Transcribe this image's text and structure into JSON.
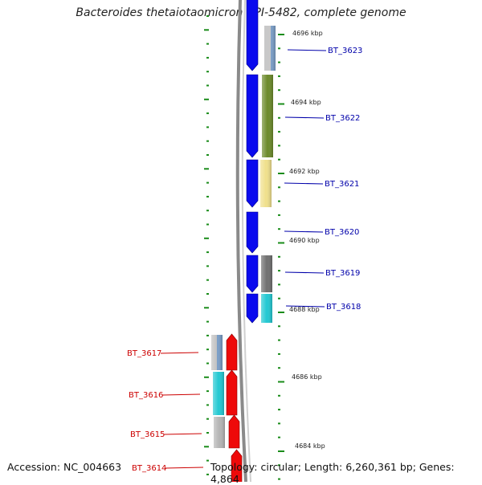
{
  "title": "Bacteroides thetaiotaomicron VPI-5482, complete genome",
  "accession_text": "Accession: NC_004663",
  "summary_text": "Topology: circular; Length: 6,260,361 bp; Genes: 4,864",
  "colors": {
    "forward_strand": "#0a0aee",
    "reverse_strand": "#ee0a0a",
    "forward_label": "#0000aa",
    "reverse_label": "#cc0000",
    "ruler_tick": "#1a8c1a",
    "backbone": "#888888"
  },
  "scale_labels": [
    "4696 kbp",
    "4694 kbp",
    "4692 kbp",
    "4690 kbp",
    "4688 kbp",
    "4686 kbp",
    "4684 kbp"
  ],
  "forward_genes": [
    {
      "label": "BT_3623",
      "cog_color": "#7a9ec8"
    },
    {
      "label": "BT_3622",
      "cog_color": "#6b8a2a"
    },
    {
      "label": "BT_3621",
      "cog_color": "#f0e08c"
    },
    {
      "label": "BT_3620",
      "cog_color": null
    },
    {
      "label": "BT_3619",
      "cog_color": "#707070"
    },
    {
      "label": "BT_3618",
      "cog_color": "#22c8d2"
    }
  ],
  "reverse_genes": [
    {
      "label": "BT_3617",
      "cog_color": "#7a9ec8"
    },
    {
      "label": "BT_3616",
      "cog_color": "#22c8d2"
    },
    {
      "label": "BT_3615",
      "cog_color": "#b4b4b4"
    },
    {
      "label": "BT_3614",
      "cog_color": null
    }
  ]
}
